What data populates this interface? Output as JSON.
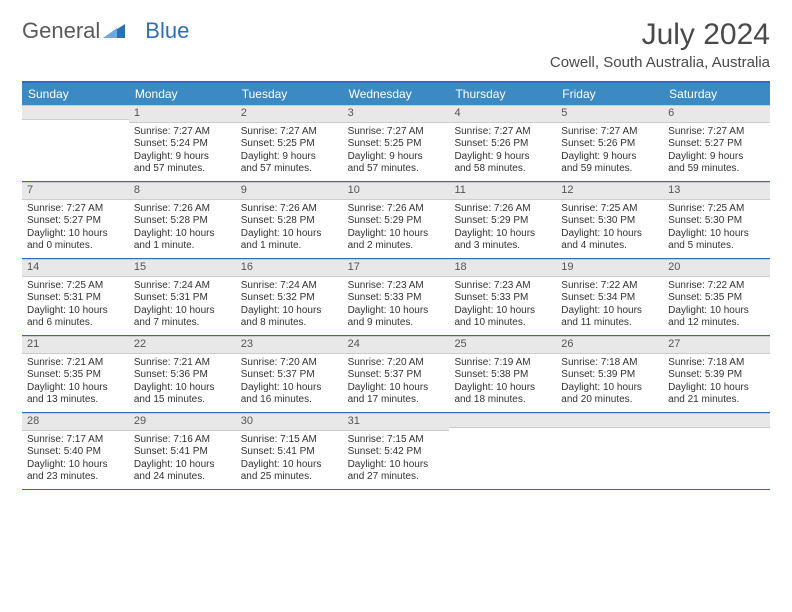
{
  "logo": {
    "part1": "General",
    "part2": "Blue"
  },
  "title": "July 2024",
  "location": "Cowell, South Australia, Australia",
  "colors": {
    "header_bg": "#3b8ac4",
    "header_text": "#ffffff",
    "border": "#2d6fb7",
    "daynum_bg": "#e8e8e8",
    "text": "#333333",
    "logo_gray": "#5a5a5a",
    "logo_blue": "#2d6fb7"
  },
  "day_names": [
    "Sunday",
    "Monday",
    "Tuesday",
    "Wednesday",
    "Thursday",
    "Friday",
    "Saturday"
  ],
  "weeks": [
    [
      {
        "num": "",
        "lines": []
      },
      {
        "num": "1",
        "lines": [
          "Sunrise: 7:27 AM",
          "Sunset: 5:24 PM",
          "Daylight: 9 hours",
          "and 57 minutes."
        ]
      },
      {
        "num": "2",
        "lines": [
          "Sunrise: 7:27 AM",
          "Sunset: 5:25 PM",
          "Daylight: 9 hours",
          "and 57 minutes."
        ]
      },
      {
        "num": "3",
        "lines": [
          "Sunrise: 7:27 AM",
          "Sunset: 5:25 PM",
          "Daylight: 9 hours",
          "and 57 minutes."
        ]
      },
      {
        "num": "4",
        "lines": [
          "Sunrise: 7:27 AM",
          "Sunset: 5:26 PM",
          "Daylight: 9 hours",
          "and 58 minutes."
        ]
      },
      {
        "num": "5",
        "lines": [
          "Sunrise: 7:27 AM",
          "Sunset: 5:26 PM",
          "Daylight: 9 hours",
          "and 59 minutes."
        ]
      },
      {
        "num": "6",
        "lines": [
          "Sunrise: 7:27 AM",
          "Sunset: 5:27 PM",
          "Daylight: 9 hours",
          "and 59 minutes."
        ]
      }
    ],
    [
      {
        "num": "7",
        "lines": [
          "Sunrise: 7:27 AM",
          "Sunset: 5:27 PM",
          "Daylight: 10 hours",
          "and 0 minutes."
        ]
      },
      {
        "num": "8",
        "lines": [
          "Sunrise: 7:26 AM",
          "Sunset: 5:28 PM",
          "Daylight: 10 hours",
          "and 1 minute."
        ]
      },
      {
        "num": "9",
        "lines": [
          "Sunrise: 7:26 AM",
          "Sunset: 5:28 PM",
          "Daylight: 10 hours",
          "and 1 minute."
        ]
      },
      {
        "num": "10",
        "lines": [
          "Sunrise: 7:26 AM",
          "Sunset: 5:29 PM",
          "Daylight: 10 hours",
          "and 2 minutes."
        ]
      },
      {
        "num": "11",
        "lines": [
          "Sunrise: 7:26 AM",
          "Sunset: 5:29 PM",
          "Daylight: 10 hours",
          "and 3 minutes."
        ]
      },
      {
        "num": "12",
        "lines": [
          "Sunrise: 7:25 AM",
          "Sunset: 5:30 PM",
          "Daylight: 10 hours",
          "and 4 minutes."
        ]
      },
      {
        "num": "13",
        "lines": [
          "Sunrise: 7:25 AM",
          "Sunset: 5:30 PM",
          "Daylight: 10 hours",
          "and 5 minutes."
        ]
      }
    ],
    [
      {
        "num": "14",
        "lines": [
          "Sunrise: 7:25 AM",
          "Sunset: 5:31 PM",
          "Daylight: 10 hours",
          "and 6 minutes."
        ]
      },
      {
        "num": "15",
        "lines": [
          "Sunrise: 7:24 AM",
          "Sunset: 5:31 PM",
          "Daylight: 10 hours",
          "and 7 minutes."
        ]
      },
      {
        "num": "16",
        "lines": [
          "Sunrise: 7:24 AM",
          "Sunset: 5:32 PM",
          "Daylight: 10 hours",
          "and 8 minutes."
        ]
      },
      {
        "num": "17",
        "lines": [
          "Sunrise: 7:23 AM",
          "Sunset: 5:33 PM",
          "Daylight: 10 hours",
          "and 9 minutes."
        ]
      },
      {
        "num": "18",
        "lines": [
          "Sunrise: 7:23 AM",
          "Sunset: 5:33 PM",
          "Daylight: 10 hours",
          "and 10 minutes."
        ]
      },
      {
        "num": "19",
        "lines": [
          "Sunrise: 7:22 AM",
          "Sunset: 5:34 PM",
          "Daylight: 10 hours",
          "and 11 minutes."
        ]
      },
      {
        "num": "20",
        "lines": [
          "Sunrise: 7:22 AM",
          "Sunset: 5:35 PM",
          "Daylight: 10 hours",
          "and 12 minutes."
        ]
      }
    ],
    [
      {
        "num": "21",
        "lines": [
          "Sunrise: 7:21 AM",
          "Sunset: 5:35 PM",
          "Daylight: 10 hours",
          "and 13 minutes."
        ]
      },
      {
        "num": "22",
        "lines": [
          "Sunrise: 7:21 AM",
          "Sunset: 5:36 PM",
          "Daylight: 10 hours",
          "and 15 minutes."
        ]
      },
      {
        "num": "23",
        "lines": [
          "Sunrise: 7:20 AM",
          "Sunset: 5:37 PM",
          "Daylight: 10 hours",
          "and 16 minutes."
        ]
      },
      {
        "num": "24",
        "lines": [
          "Sunrise: 7:20 AM",
          "Sunset: 5:37 PM",
          "Daylight: 10 hours",
          "and 17 minutes."
        ]
      },
      {
        "num": "25",
        "lines": [
          "Sunrise: 7:19 AM",
          "Sunset: 5:38 PM",
          "Daylight: 10 hours",
          "and 18 minutes."
        ]
      },
      {
        "num": "26",
        "lines": [
          "Sunrise: 7:18 AM",
          "Sunset: 5:39 PM",
          "Daylight: 10 hours",
          "and 20 minutes."
        ]
      },
      {
        "num": "27",
        "lines": [
          "Sunrise: 7:18 AM",
          "Sunset: 5:39 PM",
          "Daylight: 10 hours",
          "and 21 minutes."
        ]
      }
    ],
    [
      {
        "num": "28",
        "lines": [
          "Sunrise: 7:17 AM",
          "Sunset: 5:40 PM",
          "Daylight: 10 hours",
          "and 23 minutes."
        ]
      },
      {
        "num": "29",
        "lines": [
          "Sunrise: 7:16 AM",
          "Sunset: 5:41 PM",
          "Daylight: 10 hours",
          "and 24 minutes."
        ]
      },
      {
        "num": "30",
        "lines": [
          "Sunrise: 7:15 AM",
          "Sunset: 5:41 PM",
          "Daylight: 10 hours",
          "and 25 minutes."
        ]
      },
      {
        "num": "31",
        "lines": [
          "Sunrise: 7:15 AM",
          "Sunset: 5:42 PM",
          "Daylight: 10 hours",
          "and 27 minutes."
        ]
      },
      {
        "num": "",
        "lines": []
      },
      {
        "num": "",
        "lines": []
      },
      {
        "num": "",
        "lines": []
      }
    ]
  ]
}
